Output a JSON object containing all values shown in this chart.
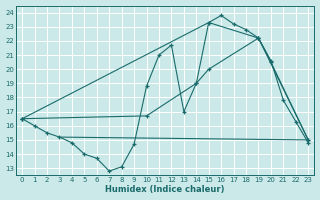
{
  "xlabel": "Humidex (Indice chaleur)",
  "bg_color": "#cce9e9",
  "grid_color": "#ffffff",
  "line_color": "#1a6b6b",
  "xlim": [
    -0.5,
    23.5
  ],
  "ylim": [
    12.5,
    24.5
  ],
  "xticks": [
    0,
    1,
    2,
    3,
    4,
    5,
    6,
    7,
    8,
    9,
    10,
    11,
    12,
    13,
    14,
    15,
    16,
    17,
    18,
    19,
    20,
    21,
    22,
    23
  ],
  "yticks": [
    13,
    14,
    15,
    16,
    17,
    18,
    19,
    20,
    21,
    22,
    23,
    24
  ],
  "line1_x": [
    0,
    1,
    2,
    3,
    4,
    5,
    6,
    7,
    8,
    9,
    10,
    11,
    12,
    13,
    14,
    15,
    16,
    17,
    18,
    19,
    20,
    21,
    22,
    23
  ],
  "line1_y": [
    16.5,
    16.0,
    15.5,
    15.2,
    14.8,
    14.0,
    13.7,
    12.8,
    13.1,
    14.7,
    18.8,
    21.0,
    21.7,
    17.0,
    19.0,
    23.3,
    23.8,
    23.2,
    22.8,
    22.2,
    20.6,
    17.8,
    16.3,
    14.8
  ],
  "line2_x": [
    0,
    10,
    14,
    15,
    19,
    20,
    23
  ],
  "line2_y": [
    16.5,
    16.7,
    19.0,
    20.0,
    22.2,
    20.5,
    15.0
  ],
  "line3_x": [
    0,
    15,
    19,
    23
  ],
  "line3_y": [
    16.5,
    23.3,
    22.2,
    15.0
  ],
  "line4_x": [
    3,
    23
  ],
  "line4_y": [
    15.2,
    15.0
  ]
}
